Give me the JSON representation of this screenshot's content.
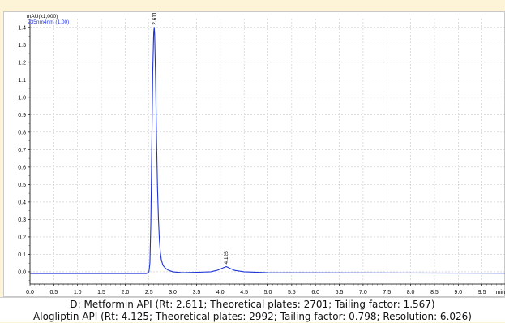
{
  "chart_data": {
    "type": "line",
    "y_unit_label": "mAU(x1,000)",
    "channel_label": "235nm4nm (1.00)",
    "x_unit_label": "min",
    "xlim": [
      0.0,
      10.0
    ],
    "ylim": [
      -0.07,
      1.45
    ],
    "x_ticks": [
      "0.0",
      "0.5",
      "1.0",
      "1.5",
      "2.0",
      "2.5",
      "3.0",
      "3.5",
      "4.0",
      "4.5",
      "5.0",
      "5.5",
      "6.0",
      "6.5",
      "7.0",
      "7.5",
      "8.0",
      "8.5",
      "9.0",
      "9.5"
    ],
    "y_ticks": [
      "0.0",
      "0.1",
      "0.2",
      "0.3",
      "0.4",
      "0.5",
      "0.6",
      "0.7",
      "0.8",
      "0.9",
      "1.0",
      "1.1",
      "1.2",
      "1.3",
      "1.4"
    ],
    "grid": true,
    "series": [
      {
        "color": "#1f33d6",
        "x": [
          0.0,
          2.0,
          2.45,
          2.5,
          2.52,
          2.54,
          2.56,
          2.58,
          2.6,
          2.611,
          2.62,
          2.64,
          2.66,
          2.68,
          2.7,
          2.72,
          2.74,
          2.76,
          2.78,
          2.8,
          2.85,
          2.9,
          3.0,
          3.2,
          3.5,
          3.8,
          3.95,
          4.05,
          4.125,
          4.2,
          4.3,
          4.5,
          5.0,
          10.0
        ],
        "y": [
          -0.01,
          -0.01,
          -0.01,
          0.0,
          0.05,
          0.28,
          0.72,
          1.15,
          1.37,
          1.4,
          1.36,
          1.1,
          0.75,
          0.48,
          0.3,
          0.18,
          0.11,
          0.07,
          0.05,
          0.035,
          0.02,
          0.01,
          0.0,
          -0.005,
          -0.003,
          0.0,
          0.01,
          0.022,
          0.03,
          0.02,
          0.008,
          0.0,
          -0.005,
          -0.008
        ]
      }
    ],
    "peak_labels": [
      {
        "x": 2.611,
        "y": 1.4,
        "text": "2.611"
      },
      {
        "x": 4.125,
        "y": 0.03,
        "text": "4.125"
      }
    ]
  },
  "caption": {
    "line1": "D: Metformin API (Rt: 2.611; Theoretical plates: 2701; Tailing factor: 1.567)",
    "line2": "Alogliptin API (Rt: 4.125; Theoretical plates: 2992; Tailing factor: 0.798; Resolution: 6.026)"
  }
}
